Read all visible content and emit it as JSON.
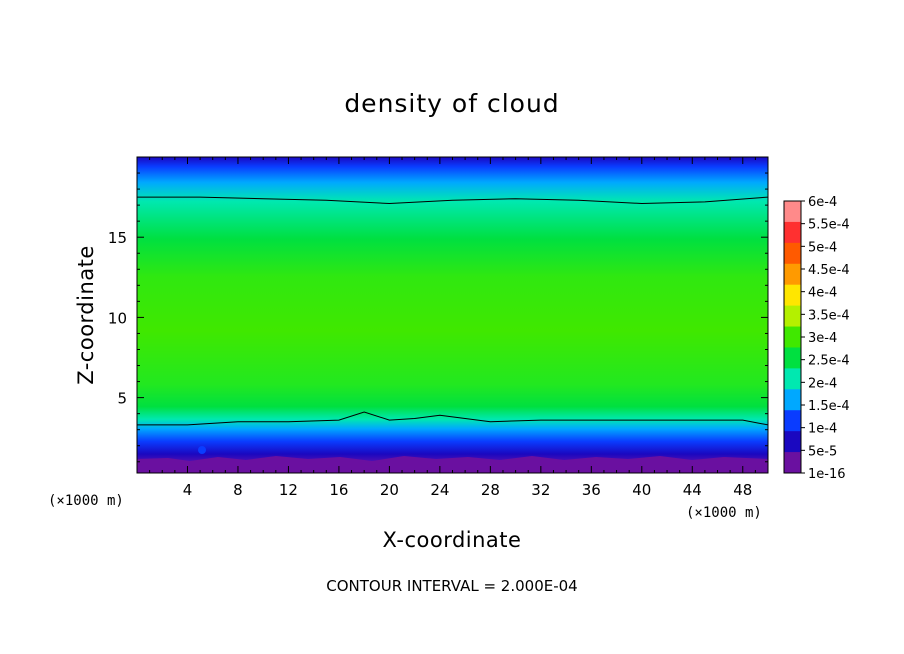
{
  "chart_data": {
    "type": "heatmap",
    "title": "density of cloud",
    "xlabel": "X-coordinate",
    "ylabel": "Z-coordinate",
    "x_unit": "(×1000 m)",
    "y_unit": "(×1000 m)",
    "xlim": [
      0,
      50
    ],
    "ylim": [
      0.3,
      20
    ],
    "xticks": [
      4,
      8,
      12,
      16,
      20,
      24,
      28,
      32,
      36,
      40,
      44,
      48
    ],
    "yticks": [
      5,
      10,
      15
    ],
    "footer": "CONTOUR INTERVAL = 2.000E-04",
    "colorbar": {
      "labels": [
        "6e-4",
        "5.5e-4",
        "5e-4",
        "4.5e-4",
        "4e-4",
        "3.5e-4",
        "3e-4",
        "2.5e-4",
        "2e-4",
        "1.5e-4",
        "1e-4",
        "5e-5",
        "1e-16"
      ],
      "colors": [
        "#ff8a8a",
        "#ff3030",
        "#ff5a00",
        "#ff9a00",
        "#ffe600",
        "#b4f000",
        "#40e800",
        "#00e040",
        "#00e8b0",
        "#00a8ff",
        "#0a3cff",
        "#1a08c0",
        "#6a10a0"
      ]
    },
    "contour_levels": [
      {
        "name": "upper contour",
        "x": [
          0,
          5,
          10,
          15,
          20,
          25,
          30,
          35,
          40,
          45,
          50
        ],
        "y": [
          17.5,
          17.5,
          17.4,
          17.3,
          17.1,
          17.3,
          17.4,
          17.3,
          17.1,
          17.2,
          17.5
        ]
      },
      {
        "name": "lower contour",
        "x": [
          0,
          4,
          8,
          12,
          16,
          18,
          20,
          22,
          24,
          26,
          28,
          32,
          36,
          40,
          44,
          48,
          50
        ],
        "y": [
          3.3,
          3.3,
          3.5,
          3.5,
          3.6,
          4.1,
          3.6,
          3.7,
          3.9,
          3.7,
          3.5,
          3.6,
          3.6,
          3.6,
          3.6,
          3.6,
          3.3
        ]
      }
    ]
  }
}
